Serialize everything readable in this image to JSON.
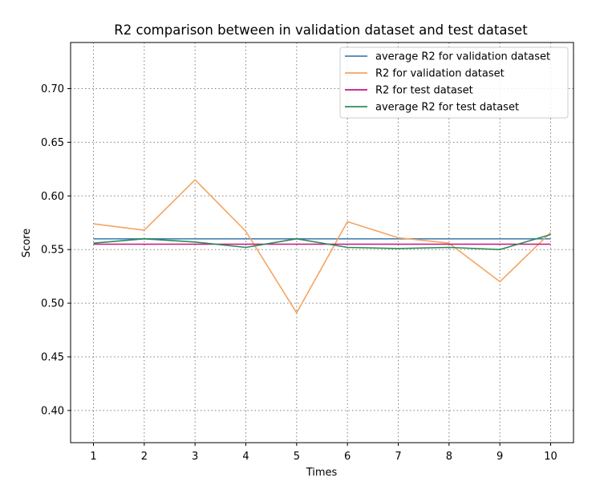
{
  "chart_data": {
    "type": "line",
    "title": "R2 comparison between in validation dataset and test dataset",
    "xlabel": "Times",
    "ylabel": "Score",
    "x": [
      1,
      2,
      3,
      4,
      5,
      6,
      7,
      8,
      9,
      10
    ],
    "xticks": [
      "1",
      "2",
      "3",
      "4",
      "5",
      "6",
      "7",
      "8",
      "9",
      "10"
    ],
    "yticks": [
      "0.40",
      "0.45",
      "0.50",
      "0.55",
      "0.60",
      "0.65",
      "0.70"
    ],
    "xlim": [
      0.55,
      10.45
    ],
    "ylim": [
      0.37,
      0.743
    ],
    "grid": true,
    "legend_position": "top-right",
    "series": [
      {
        "name": "average R2 for validation dataset",
        "color": "#4682b4",
        "values": [
          0.56,
          0.56,
          0.56,
          0.56,
          0.56,
          0.56,
          0.56,
          0.56,
          0.56,
          0.56
        ]
      },
      {
        "name": "R2 for validation dataset",
        "color": "#f4a460",
        "values": [
          0.574,
          0.568,
          0.615,
          0.567,
          0.491,
          0.576,
          0.561,
          0.556,
          0.52,
          0.566
        ]
      },
      {
        "name": "R2 for test dataset",
        "color": "#c71585",
        "values": [
          0.555,
          0.555,
          0.555,
          0.555,
          0.555,
          0.555,
          0.555,
          0.555,
          0.555,
          0.555
        ]
      },
      {
        "name": "average R2 for test dataset",
        "color": "#2e8b57",
        "values": [
          0.556,
          0.56,
          0.557,
          0.552,
          0.56,
          0.552,
          0.551,
          0.552,
          0.55,
          0.564
        ]
      }
    ]
  }
}
